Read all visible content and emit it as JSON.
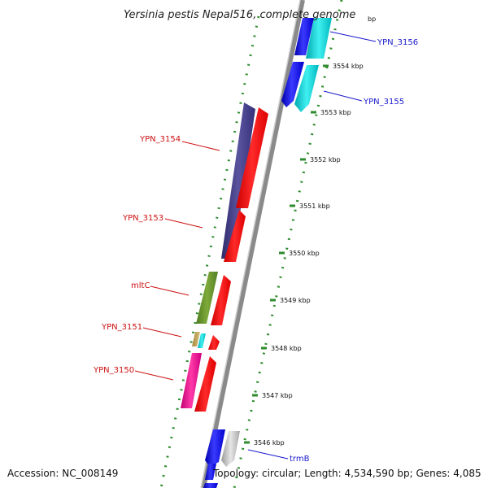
{
  "title": "Yersinia pestis Nepal516, complete genome",
  "title_tail": "bp",
  "accession": "Accession: NC_008149",
  "topology": "Topology: circular; Length: 4,534,590 bp; Genes: 4,085",
  "colors": {
    "backbone": "#8a8a8a",
    "tick": "#2e8b2e",
    "forward_label": "#1a1acc",
    "reverse_label": "#cc1111"
  },
  "scale_labels": [
    {
      "text": "3554 kbp",
      "pos": 3554
    },
    {
      "text": "3553 kbp",
      "pos": 3553
    },
    {
      "text": "3552 kbp",
      "pos": 3552
    },
    {
      "text": "3551 kbp",
      "pos": 3551
    },
    {
      "text": "3550 kbp",
      "pos": 3550
    },
    {
      "text": "3549 kbp",
      "pos": 3549
    },
    {
      "text": "3548 kbp",
      "pos": 3548
    },
    {
      "text": "3547 kbp",
      "pos": 3547
    },
    {
      "text": "3546 kbp",
      "pos": 3546
    }
  ],
  "gene_labels": [
    {
      "text": "YPN_3156",
      "strand": "forward"
    },
    {
      "text": "YPN_3155",
      "strand": "forward"
    },
    {
      "text": "YPN_3154",
      "strand": "reverse"
    },
    {
      "text": "YPN_3153",
      "strand": "reverse"
    },
    {
      "text": "mltC",
      "strand": "reverse"
    },
    {
      "text": "YPN_3151",
      "strand": "reverse"
    },
    {
      "text": "YPN_3150",
      "strand": "reverse"
    },
    {
      "text": "trmB",
      "strand": "forward"
    }
  ]
}
